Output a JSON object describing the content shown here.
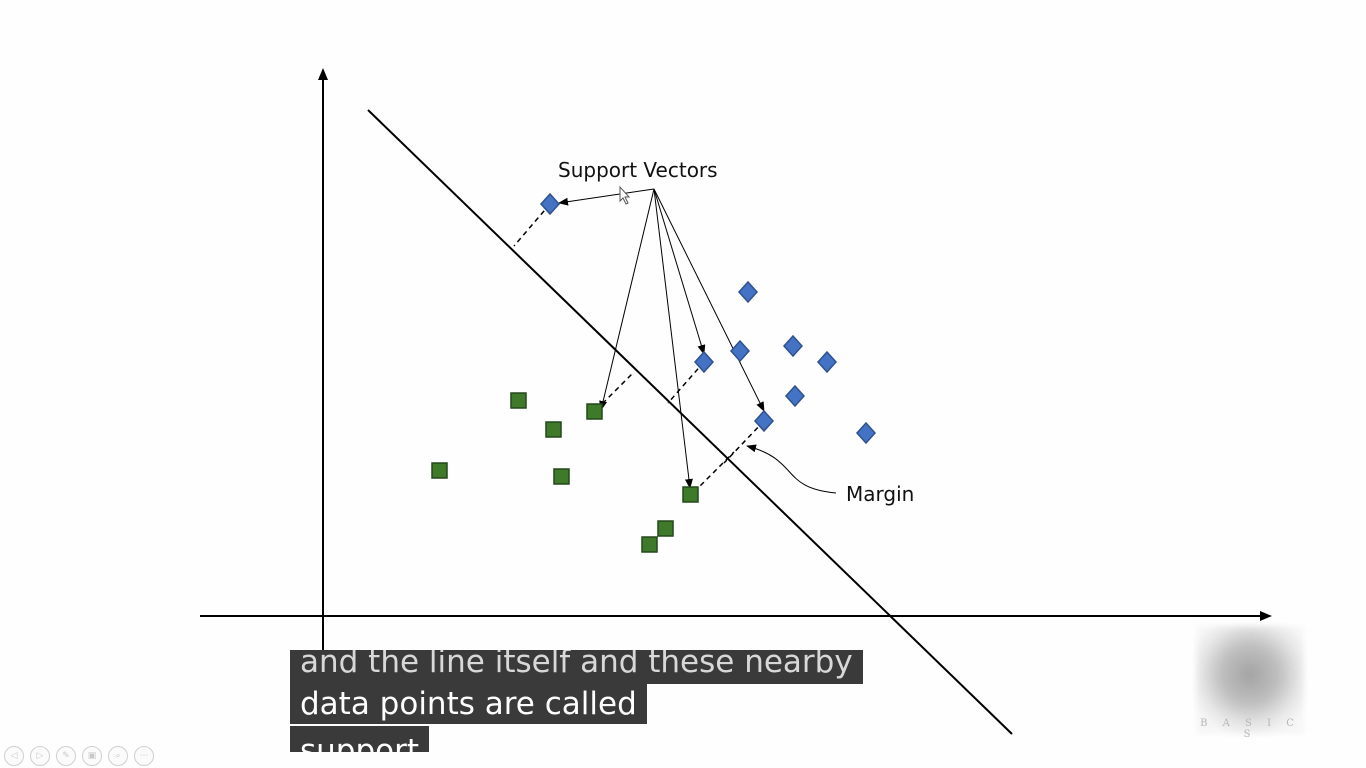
{
  "diagram": {
    "label_support_vectors": "Support Vectors",
    "label_margin": "Margin"
  },
  "subtitles": {
    "line_top": "and the line itself and these nearby",
    "line_mid": "data points are called",
    "line_bot": "support"
  },
  "logo": {
    "letters": "B A S I C S"
  },
  "toolbar": [
    {
      "icon": "previous-icon",
      "glyph": "◁"
    },
    {
      "icon": "next-icon",
      "glyph": "▷"
    },
    {
      "icon": "pen-icon",
      "glyph": "✎"
    },
    {
      "icon": "slides-icon",
      "glyph": "▣"
    },
    {
      "icon": "zoom-icon",
      "glyph": "⌕"
    },
    {
      "icon": "more-icon",
      "glyph": "⋯"
    }
  ],
  "colors": {
    "class_square": "#3f7a2a",
    "class_diamond": "#4472c4",
    "caption_bg": "#3a3a3a"
  }
}
